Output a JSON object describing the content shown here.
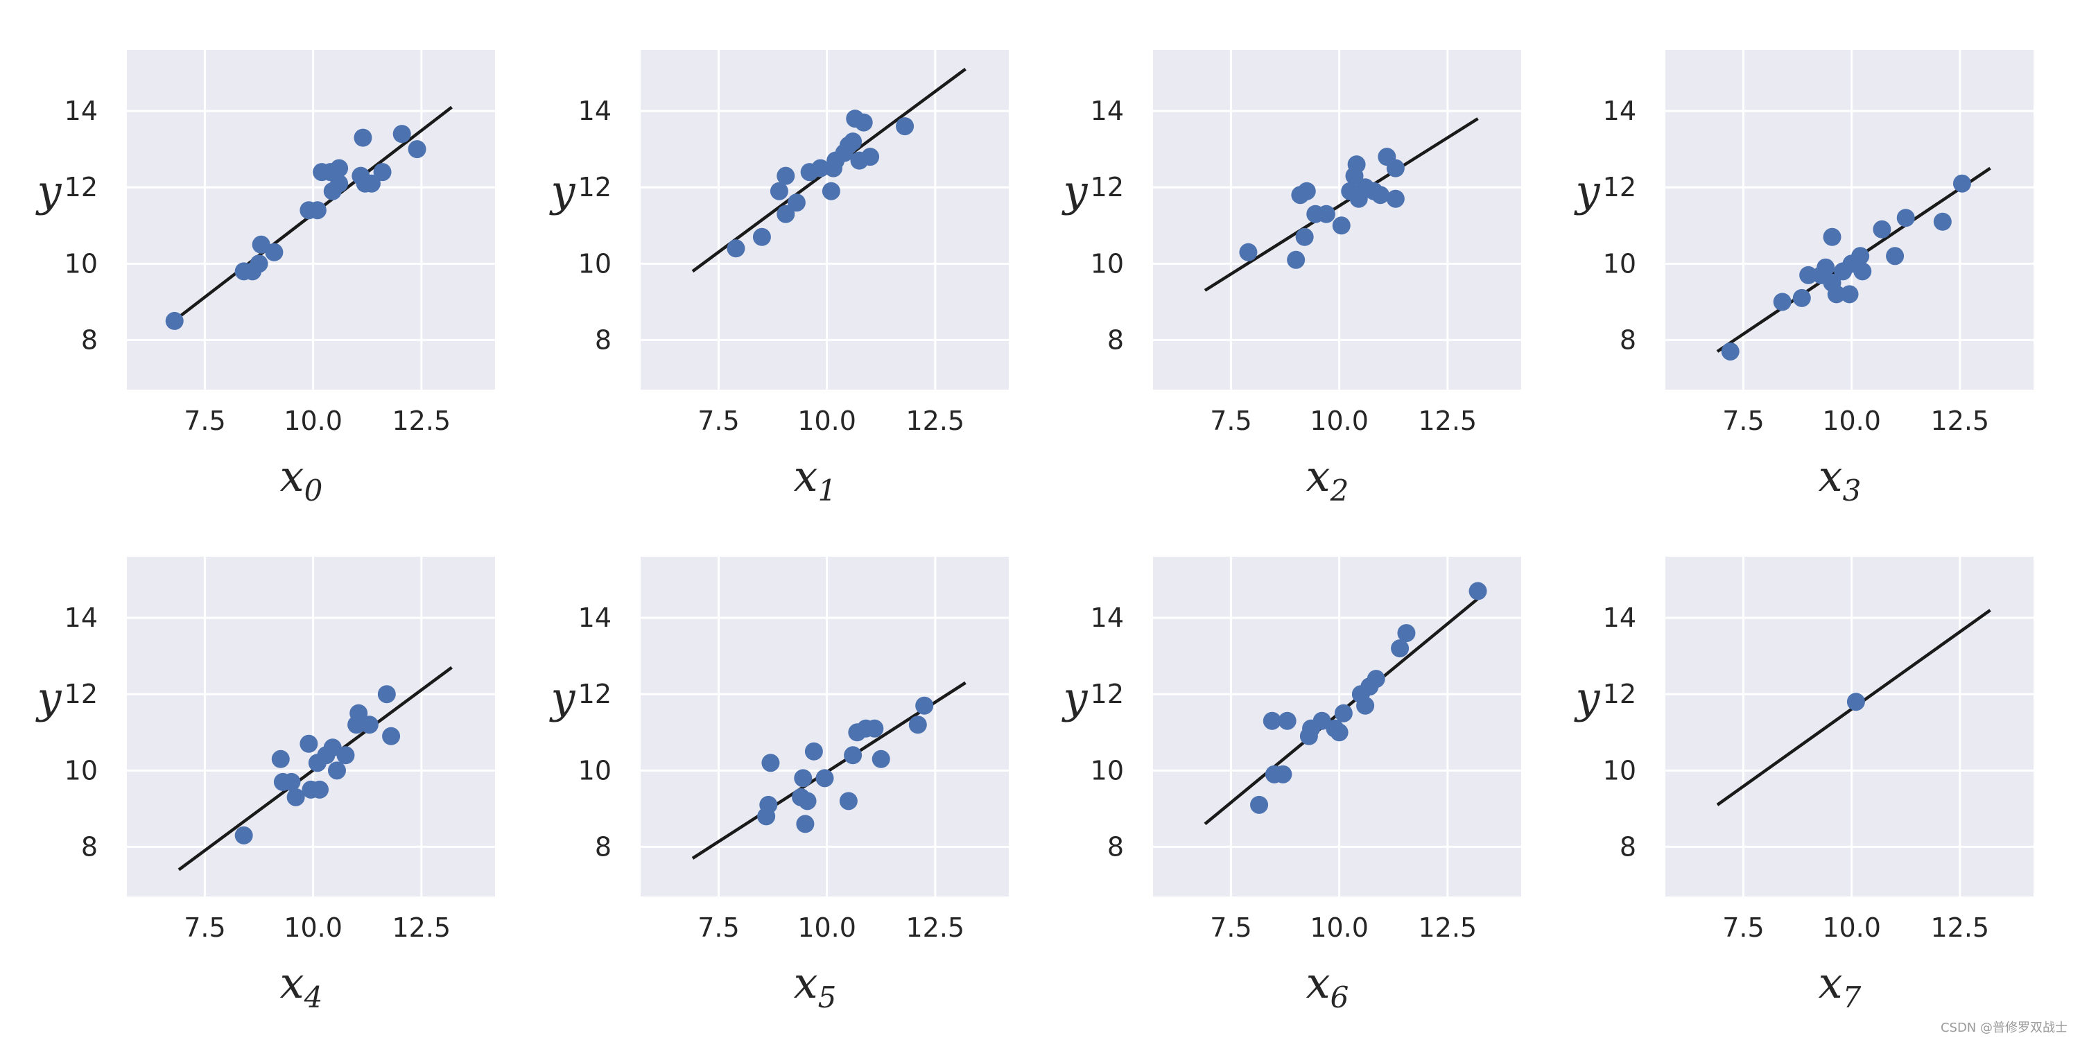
{
  "chart_data": [
    {
      "type": "scatter",
      "xlabel": "x",
      "xlabel_sub": "0",
      "ylabel": "y",
      "xlim": [
        5.7,
        14.2
      ],
      "ylim": [
        6.7,
        15.6
      ],
      "xticks": [
        7.5,
        10.0,
        12.5
      ],
      "xtick_labels": [
        "7.5",
        "10.0",
        "12.5"
      ],
      "yticks": [
        8,
        10,
        12,
        14
      ],
      "ytick_labels": [
        "8",
        "10",
        "12",
        "14"
      ],
      "grid": true,
      "points": [
        [
          6.8,
          8.5
        ],
        [
          8.4,
          9.8
        ],
        [
          8.6,
          9.8
        ],
        [
          8.75,
          10.0
        ],
        [
          8.8,
          10.5
        ],
        [
          9.1,
          10.3
        ],
        [
          9.9,
          11.4
        ],
        [
          10.1,
          11.4
        ],
        [
          10.2,
          12.4
        ],
        [
          10.4,
          12.4
        ],
        [
          10.45,
          11.9
        ],
        [
          10.6,
          12.5
        ],
        [
          10.6,
          12.1
        ],
        [
          11.1,
          12.3
        ],
        [
          11.2,
          12.1
        ],
        [
          11.35,
          12.1
        ],
        [
          11.6,
          12.4
        ],
        [
          11.15,
          13.3
        ],
        [
          12.05,
          13.4
        ],
        [
          12.4,
          13.0
        ]
      ],
      "fit_line": [
        [
          6.9,
          8.6
        ],
        [
          13.2,
          14.1
        ]
      ]
    },
    {
      "type": "scatter",
      "xlabel": "x",
      "xlabel_sub": "1",
      "ylabel": "y",
      "xlim": [
        5.7,
        14.2
      ],
      "ylim": [
        6.7,
        15.6
      ],
      "xticks": [
        7.5,
        10.0,
        12.5
      ],
      "xtick_labels": [
        "7.5",
        "10.0",
        "12.5"
      ],
      "yticks": [
        8,
        10,
        12,
        14
      ],
      "ytick_labels": [
        "8",
        "10",
        "12",
        "14"
      ],
      "grid": true,
      "points": [
        [
          7.9,
          10.4
        ],
        [
          8.5,
          10.7
        ],
        [
          8.9,
          11.9
        ],
        [
          9.05,
          11.3
        ],
        [
          9.05,
          12.3
        ],
        [
          9.3,
          11.6
        ],
        [
          9.6,
          12.4
        ],
        [
          9.85,
          12.5
        ],
        [
          10.1,
          11.9
        ],
        [
          10.15,
          12.5
        ],
        [
          10.2,
          12.7
        ],
        [
          10.4,
          12.9
        ],
        [
          10.5,
          13.1
        ],
        [
          10.6,
          13.2
        ],
        [
          10.65,
          13.8
        ],
        [
          10.75,
          12.7
        ],
        [
          10.85,
          13.7
        ],
        [
          11.0,
          12.8
        ],
        [
          11.8,
          13.6
        ]
      ],
      "fit_line": [
        [
          6.9,
          9.8
        ],
        [
          13.2,
          15.1
        ]
      ]
    },
    {
      "type": "scatter",
      "xlabel": "x",
      "xlabel_sub": "2",
      "ylabel": "y",
      "xlim": [
        5.7,
        14.2
      ],
      "ylim": [
        6.7,
        15.6
      ],
      "xticks": [
        7.5,
        10.0,
        12.5
      ],
      "xtick_labels": [
        "7.5",
        "10.0",
        "12.5"
      ],
      "yticks": [
        8,
        10,
        12,
        14
      ],
      "ytick_labels": [
        "8",
        "10",
        "12",
        "14"
      ],
      "grid": true,
      "points": [
        [
          7.9,
          10.3
        ],
        [
          9.0,
          10.1
        ],
        [
          9.1,
          11.8
        ],
        [
          9.2,
          10.7
        ],
        [
          9.25,
          11.9
        ],
        [
          9.45,
          11.3
        ],
        [
          9.7,
          11.3
        ],
        [
          10.05,
          11.0
        ],
        [
          10.25,
          11.9
        ],
        [
          10.35,
          12.3
        ],
        [
          10.4,
          12.6
        ],
        [
          10.45,
          11.7
        ],
        [
          10.6,
          12.0
        ],
        [
          10.8,
          11.9
        ],
        [
          10.95,
          11.8
        ],
        [
          11.1,
          12.8
        ],
        [
          11.3,
          12.5
        ],
        [
          11.3,
          11.7
        ]
      ],
      "fit_line": [
        [
          6.9,
          9.3
        ],
        [
          13.2,
          13.8
        ]
      ]
    },
    {
      "type": "scatter",
      "xlabel": "x",
      "xlabel_sub": "3",
      "ylabel": "y",
      "xlim": [
        5.7,
        14.2
      ],
      "ylim": [
        6.7,
        15.6
      ],
      "xticks": [
        7.5,
        10.0,
        12.5
      ],
      "xtick_labels": [
        "7.5",
        "10.0",
        "12.5"
      ],
      "yticks": [
        8,
        10,
        12,
        14
      ],
      "ytick_labels": [
        "8",
        "10",
        "12",
        "14"
      ],
      "grid": true,
      "points": [
        [
          7.2,
          7.7
        ],
        [
          8.4,
          9.0
        ],
        [
          8.85,
          9.1
        ],
        [
          9.0,
          9.7
        ],
        [
          9.3,
          9.7
        ],
        [
          9.4,
          9.9
        ],
        [
          9.55,
          9.5
        ],
        [
          9.55,
          10.7
        ],
        [
          9.65,
          9.2
        ],
        [
          9.8,
          9.8
        ],
        [
          9.95,
          9.2
        ],
        [
          10.0,
          10.0
        ],
        [
          10.2,
          10.2
        ],
        [
          10.25,
          9.8
        ],
        [
          10.7,
          10.9
        ],
        [
          11.0,
          10.2
        ],
        [
          11.25,
          11.2
        ],
        [
          12.1,
          11.1
        ],
        [
          12.55,
          12.1
        ]
      ],
      "fit_line": [
        [
          6.9,
          7.7
        ],
        [
          13.2,
          12.5
        ]
      ]
    },
    {
      "type": "scatter",
      "xlabel": "x",
      "xlabel_sub": "4",
      "ylabel": "y",
      "xlim": [
        5.7,
        14.2
      ],
      "ylim": [
        6.7,
        15.6
      ],
      "xticks": [
        7.5,
        10.0,
        12.5
      ],
      "xtick_labels": [
        "7.5",
        "10.0",
        "12.5"
      ],
      "yticks": [
        8,
        10,
        12,
        14
      ],
      "ytick_labels": [
        "8",
        "10",
        "12",
        "14"
      ],
      "grid": true,
      "points": [
        [
          8.4,
          8.3
        ],
        [
          9.25,
          10.3
        ],
        [
          9.3,
          9.7
        ],
        [
          9.5,
          9.7
        ],
        [
          9.6,
          9.3
        ],
        [
          9.9,
          10.7
        ],
        [
          9.95,
          9.5
        ],
        [
          10.1,
          10.2
        ],
        [
          10.15,
          9.5
        ],
        [
          10.3,
          10.4
        ],
        [
          10.45,
          10.6
        ],
        [
          10.55,
          10.0
        ],
        [
          10.75,
          10.4
        ],
        [
          11.0,
          11.2
        ],
        [
          11.05,
          11.5
        ],
        [
          11.3,
          11.2
        ],
        [
          11.7,
          12.0
        ],
        [
          11.8,
          10.9
        ]
      ],
      "fit_line": [
        [
          6.9,
          7.4
        ],
        [
          13.2,
          12.7
        ]
      ]
    },
    {
      "type": "scatter",
      "xlabel": "x",
      "xlabel_sub": "5",
      "ylabel": "y",
      "xlim": [
        5.7,
        14.2
      ],
      "ylim": [
        6.7,
        15.6
      ],
      "xticks": [
        7.5,
        10.0,
        12.5
      ],
      "xtick_labels": [
        "7.5",
        "10.0",
        "12.5"
      ],
      "yticks": [
        8,
        10,
        12,
        14
      ],
      "ytick_labels": [
        "8",
        "10",
        "12",
        "14"
      ],
      "grid": true,
      "points": [
        [
          8.6,
          8.8
        ],
        [
          8.65,
          9.1
        ],
        [
          8.7,
          10.2
        ],
        [
          9.4,
          9.3
        ],
        [
          9.45,
          9.8
        ],
        [
          9.5,
          8.6
        ],
        [
          9.55,
          9.2
        ],
        [
          9.7,
          10.5
        ],
        [
          9.95,
          9.8
        ],
        [
          10.5,
          9.2
        ],
        [
          10.6,
          10.4
        ],
        [
          10.7,
          11.0
        ],
        [
          10.9,
          11.1
        ],
        [
          11.1,
          11.1
        ],
        [
          11.25,
          10.3
        ],
        [
          12.1,
          11.2
        ],
        [
          12.25,
          11.7
        ]
      ],
      "fit_line": [
        [
          6.9,
          7.7
        ],
        [
          13.2,
          12.3
        ]
      ]
    },
    {
      "type": "scatter",
      "xlabel": "x",
      "xlabel_sub": "6",
      "ylabel": "y",
      "xlim": [
        5.7,
        14.2
      ],
      "ylim": [
        6.7,
        15.6
      ],
      "xticks": [
        7.5,
        10.0,
        12.5
      ],
      "xtick_labels": [
        "7.5",
        "10.0",
        "12.5"
      ],
      "yticks": [
        8,
        10,
        12,
        14
      ],
      "ytick_labels": [
        "8",
        "10",
        "12",
        "14"
      ],
      "grid": true,
      "points": [
        [
          8.15,
          9.1
        ],
        [
          8.45,
          11.3
        ],
        [
          8.5,
          9.9
        ],
        [
          8.7,
          9.9
        ],
        [
          8.8,
          11.3
        ],
        [
          9.3,
          10.9
        ],
        [
          9.35,
          11.1
        ],
        [
          9.6,
          11.3
        ],
        [
          9.9,
          11.1
        ],
        [
          10.0,
          11.0
        ],
        [
          10.1,
          11.5
        ],
        [
          10.5,
          12.0
        ],
        [
          10.6,
          11.7
        ],
        [
          10.7,
          12.2
        ],
        [
          10.85,
          12.4
        ],
        [
          11.4,
          13.2
        ],
        [
          11.55,
          13.6
        ],
        [
          13.2,
          14.7
        ]
      ],
      "fit_line": [
        [
          6.9,
          8.6
        ],
        [
          13.2,
          14.5
        ]
      ]
    },
    {
      "type": "scatter",
      "xlabel": "x",
      "xlabel_sub": "7",
      "ylabel": "y",
      "xlim": [
        5.7,
        14.2
      ],
      "ylim": [
        6.7,
        15.6
      ],
      "xticks": [
        7.5,
        10.0,
        12.5
      ],
      "xtick_labels": [
        "7.5",
        "10.0",
        "12.5"
      ],
      "yticks": [
        8,
        10,
        12,
        14
      ],
      "ytick_labels": [
        "8",
        "10",
        "12",
        "14"
      ],
      "grid": true,
      "points": [
        [
          10.1,
          11.8
        ]
      ],
      "fit_line": [
        [
          6.9,
          9.1
        ],
        [
          13.2,
          14.2
        ]
      ]
    }
  ],
  "colors": {
    "panel": "#eaeaf2",
    "grid": "#ffffff",
    "point": "#4c72b0",
    "line": "#1a1a1a",
    "text": "#262626"
  },
  "watermark": "CSDN @普修罗双战士"
}
